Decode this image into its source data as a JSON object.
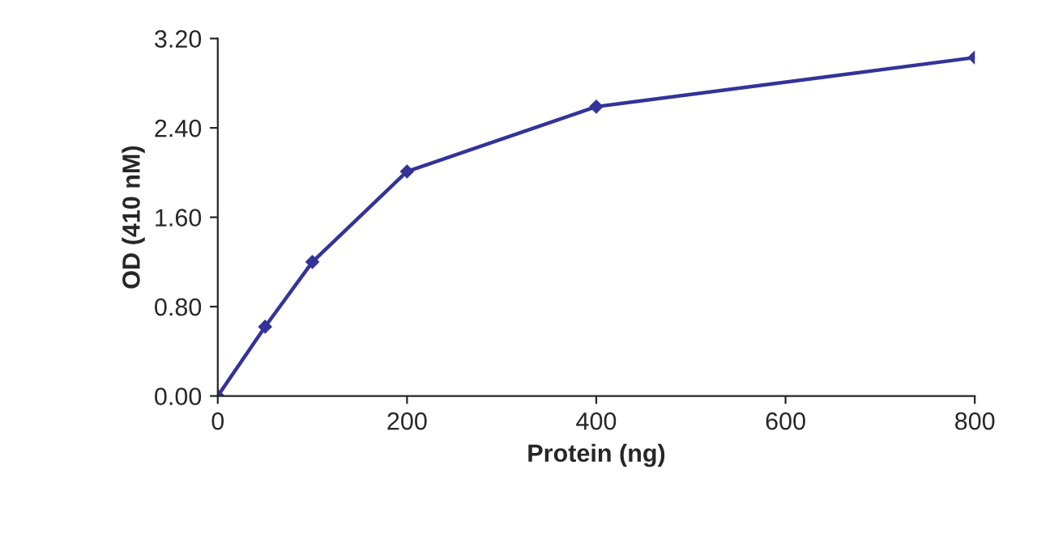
{
  "chart_data": {
    "type": "line",
    "xlabel": "Protein (ng)",
    "ylabel": "OD (410 nM)",
    "x": [
      0,
      50,
      100,
      200,
      400,
      800
    ],
    "series": [
      {
        "color": "#333399",
        "values": [
          0,
          0.62,
          1.2,
          2.01,
          2.59,
          3.03
        ]
      }
    ],
    "xlim": [
      0,
      800
    ],
    "xticks": [
      0,
      200,
      400,
      600,
      800
    ],
    "ylim": [
      0,
      3.2
    ],
    "yticks": [
      {
        "value": 0,
        "label": "0.00"
      },
      {
        "value": 0.8,
        "label": "0.80"
      },
      {
        "value": 1.6,
        "label": "1.60"
      },
      {
        "value": 2.4,
        "label": "2.40"
      },
      {
        "value": 3.2,
        "label": "3.20"
      }
    ],
    "marker": "diamond",
    "line_style": "solid",
    "grid": false,
    "legend": false
  }
}
